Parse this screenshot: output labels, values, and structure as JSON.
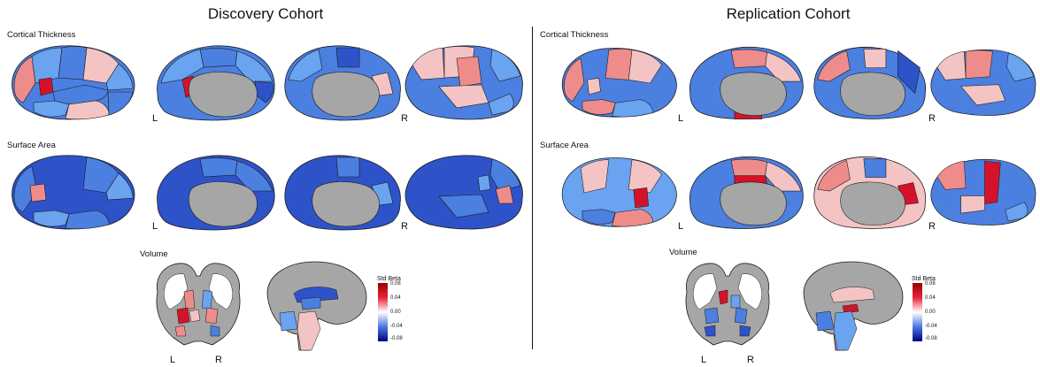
{
  "panels": [
    {
      "title": "Discovery Cohort",
      "rows": [
        {
          "label": "Cortical Thickness"
        },
        {
          "label": "Surface Area"
        }
      ],
      "hemi_left": "L",
      "hemi_right": "R",
      "volume_label": "Volume",
      "coronal_left": "L",
      "coronal_right": "R"
    },
    {
      "title": "Replication Cohort",
      "rows": [
        {
          "label": "Cortical Thickness"
        },
        {
          "label": "Surface Area"
        }
      ],
      "hemi_left": "L",
      "hemi_right": "R",
      "volume_label": "Volume",
      "coronal_left": "L",
      "coronal_right": "R"
    }
  ],
  "legend": {
    "title_line1": "Std Beta",
    "ticks": [
      "0.08",
      "0.04",
      "0.00",
      "-0.04",
      "-0.08"
    ],
    "colors": {
      "high": "#990000",
      "mid_high": "#e8223a",
      "zero": "#ffffff",
      "mid_low": "#4a78e0",
      "low": "#000080"
    }
  },
  "colors": {
    "subcortical_gray": "#a6a6a6",
    "outline": "#1a1a1a",
    "blue_dark": "#2e53c9",
    "blue_mid": "#4b7fe0",
    "blue_light": "#6aa3f0",
    "red_light": "#f4c4c4",
    "red_mid": "#ee8c8c",
    "red_dark": "#d4132a"
  }
}
